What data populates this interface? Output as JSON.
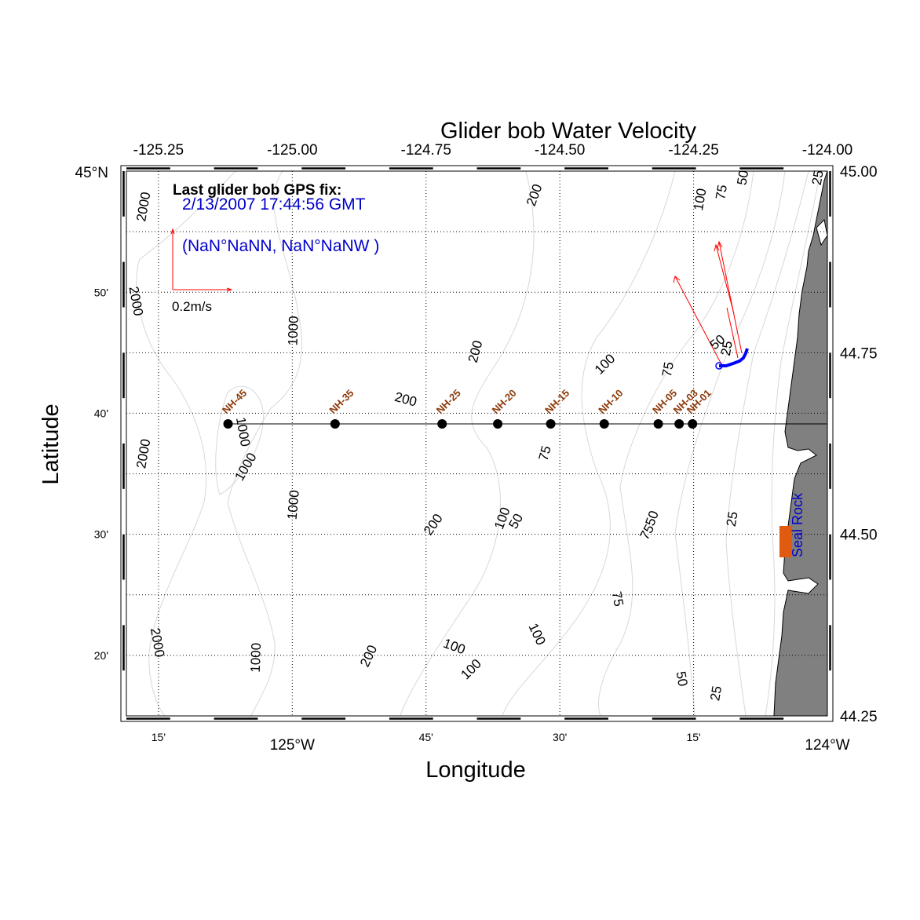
{
  "title": "Glider bob Water Velocity",
  "xlabel": "Longitude",
  "ylabel": "Latitude",
  "colors": {
    "land": "#808080",
    "contour": "#d8d8d8",
    "vector": "#ff0000",
    "track": "#0000ff",
    "station_label": "#8b3a0a",
    "station_dot": "#000000",
    "seal_rock": "#e05a10",
    "text_blue": "#0000cc"
  },
  "axes": {
    "lon_range": [
      -125.31,
      -124.0
    ],
    "lat_range": [
      44.25,
      45.0
    ],
    "top_ticks": [
      {
        "lon": -125.25,
        "label": "-125.25"
      },
      {
        "lon": -125.0,
        "label": "-125.00"
      },
      {
        "lon": -124.75,
        "label": "-124.75"
      },
      {
        "lon": -124.5,
        "label": "-124.50"
      },
      {
        "lon": -124.25,
        "label": "-124.25"
      },
      {
        "lon": -124.0,
        "label": "-124.00"
      }
    ],
    "right_ticks": [
      {
        "lat": 45.0,
        "label": "45.00"
      },
      {
        "lat": 44.75,
        "label": "44.75"
      },
      {
        "lat": 44.5,
        "label": "44.50"
      },
      {
        "lat": 44.25,
        "label": "44.25"
      }
    ],
    "bottom_ticks": [
      {
        "lon": -125.25,
        "label": "15'"
      },
      {
        "lon": -125.0,
        "label": "125°W"
      },
      {
        "lon": -124.75,
        "label": "45'"
      },
      {
        "lon": -124.5,
        "label": "30'"
      },
      {
        "lon": -124.25,
        "label": "15'"
      },
      {
        "lon": -124.0,
        "label": "124°W"
      }
    ],
    "left_ticks": [
      {
        "lat": 45.0,
        "label": "45°N"
      },
      {
        "lat": 44.8333,
        "label": "50'"
      },
      {
        "lat": 44.6667,
        "label": "40'"
      },
      {
        "lat": 44.5,
        "label": "30'"
      },
      {
        "lat": 44.3333,
        "label": "20'"
      }
    ]
  },
  "legend": {
    "heading": "Last glider bob GPS fix:",
    "datetime": "2/13/2007 17:44:56 GMT",
    "position": "(NaN°NaNN, NaN°NaNW )",
    "scale_label": "0.2m/s"
  },
  "stations": [
    {
      "name": "NH-45",
      "lon": -125.12,
      "lat": 44.652
    },
    {
      "name": "NH-35",
      "lon": -124.92,
      "lat": 44.652
    },
    {
      "name": "NH-25",
      "lon": -124.72,
      "lat": 44.652
    },
    {
      "name": "NH-20",
      "lon": -124.616,
      "lat": 44.652
    },
    {
      "name": "NH-15",
      "lon": -124.517,
      "lat": 44.652
    },
    {
      "name": "NH-10",
      "lon": -124.417,
      "lat": 44.652
    },
    {
      "name": "NH-05",
      "lon": -124.316,
      "lat": 44.652
    },
    {
      "name": "NH-03",
      "lon": -124.277,
      "lat": 44.652
    },
    {
      "name": "NH-01",
      "lon": -124.252,
      "lat": 44.652
    }
  ],
  "seal_rock_label": "Seal Rock",
  "contour_labels": [
    {
      "text": "2000",
      "lon": -125.27,
      "lat": 44.95,
      "rot": -80
    },
    {
      "text": "2000",
      "lon": -125.3,
      "lat": 44.82,
      "rot": 80
    },
    {
      "text": "2000",
      "lon": -125.27,
      "lat": 44.61,
      "rot": -80
    },
    {
      "text": "2000",
      "lon": -125.26,
      "lat": 44.35,
      "rot": 80
    },
    {
      "text": "1000",
      "lon": -124.99,
      "lat": 44.78,
      "rot": -88
    },
    {
      "text": "1000",
      "lon": -125.1,
      "lat": 44.64,
      "rot": 80
    },
    {
      "text": "1000",
      "lon": -125.08,
      "lat": 44.59,
      "rot": -60
    },
    {
      "text": "1000",
      "lon": -124.99,
      "lat": 44.54,
      "rot": -85
    },
    {
      "text": "1000",
      "lon": -125.06,
      "lat": 44.33,
      "rot": -88
    },
    {
      "text": "200",
      "lon": -124.54,
      "lat": 44.965,
      "rot": -70
    },
    {
      "text": "200",
      "lon": -124.65,
      "lat": 44.75,
      "rot": -75
    },
    {
      "text": "200",
      "lon": -124.79,
      "lat": 44.68,
      "rot": 15
    },
    {
      "text": "200",
      "lon": -124.73,
      "lat": 44.51,
      "rot": -55
    },
    {
      "text": "200",
      "lon": -124.85,
      "lat": 44.33,
      "rot": -65
    },
    {
      "text": "100",
      "lon": -124.23,
      "lat": 44.96,
      "rot": -80
    },
    {
      "text": "100",
      "lon": -124.41,
      "lat": 44.73,
      "rot": -45
    },
    {
      "text": "100",
      "lon": -124.6,
      "lat": 44.52,
      "rot": -70
    },
    {
      "text": "100",
      "lon": -124.7,
      "lat": 44.34,
      "rot": 20
    },
    {
      "text": "100",
      "lon": -124.66,
      "lat": 44.31,
      "rot": -45
    },
    {
      "text": "100",
      "lon": -124.55,
      "lat": 44.36,
      "rot": 65
    },
    {
      "text": "75",
      "lon": -124.19,
      "lat": 44.97,
      "rot": -80
    },
    {
      "text": "75",
      "lon": -124.52,
      "lat": 44.61,
      "rot": -75
    },
    {
      "text": "75",
      "lon": -124.33,
      "lat": 44.5,
      "rot": -60
    },
    {
      "text": "75",
      "lon": -124.4,
      "lat": 44.41,
      "rot": 80
    },
    {
      "text": "75",
      "lon": -124.29,
      "lat": 44.726,
      "rot": -80
    },
    {
      "text": "50",
      "lon": -124.15,
      "lat": 44.99,
      "rot": -80
    },
    {
      "text": "50",
      "lon": -124.2,
      "lat": 44.76,
      "rot": -40
    },
    {
      "text": "50",
      "lon": -124.575,
      "lat": 44.515,
      "rot": -60
    },
    {
      "text": "50",
      "lon": -124.32,
      "lat": 44.52,
      "rot": -70
    },
    {
      "text": "50",
      "lon": -124.28,
      "lat": 44.3,
      "rot": 80
    },
    {
      "text": "25",
      "lon": -124.18,
      "lat": 44.755,
      "rot": -80
    },
    {
      "text": "25",
      "lon": -124.17,
      "lat": 44.52,
      "rot": -80
    },
    {
      "text": "25",
      "lon": -124.2,
      "lat": 44.28,
      "rot": -80
    },
    {
      "text": "25",
      "lon": -124.01,
      "lat": 44.99,
      "rot": -80
    }
  ]
}
